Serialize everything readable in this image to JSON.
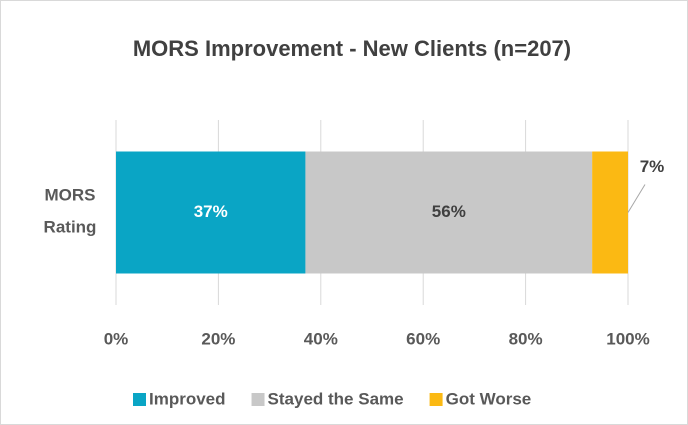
{
  "chart_data": {
    "type": "stacked_bar_horizontal",
    "title": "MORS Improvement - New Clients (n=207)",
    "categories": [
      "MORS Rating"
    ],
    "series": [
      {
        "name": "Improved",
        "color": "#0aa5c5",
        "values": [
          37
        ],
        "value_labels": [
          "37%"
        ]
      },
      {
        "name": "Stayed the Same",
        "color": "#c8c8c8",
        "values": [
          56
        ],
        "value_labels": [
          "56%"
        ]
      },
      {
        "name": "Got Worse",
        "color": "#fbb913",
        "values": [
          7
        ],
        "value_labels": [
          "7%"
        ]
      }
    ],
    "xlim": [
      0,
      100
    ],
    "xticks": [
      {
        "value": 0,
        "label": "0%"
      },
      {
        "value": 20,
        "label": "20%"
      },
      {
        "value": 40,
        "label": "40%"
      },
      {
        "value": 60,
        "label": "60%"
      },
      {
        "value": 80,
        "label": "80%"
      },
      {
        "value": 100,
        "label": "100%"
      }
    ],
    "grid": true,
    "legend": "bottom"
  }
}
